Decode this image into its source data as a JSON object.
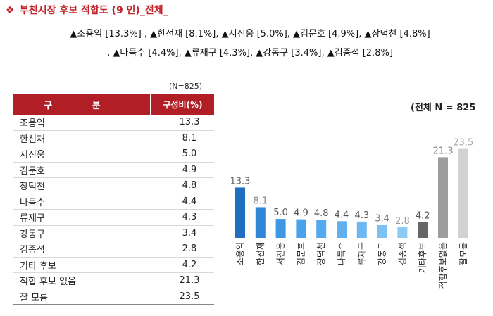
{
  "title": {
    "icon": "diamond-bullet-icon",
    "text": "부천시장 후보 적합도 (9 인)_전체_"
  },
  "summary": {
    "line1": "▲조용익 [13.3%] , ▲한선재 [8.1%], ▲서진웅 [5.0%], ▲김문호 [4.9%], ▲장덕천 [4.8%]",
    "line2": ", ▲나득수 [4.4%], ▲류재구 [4.3%], ▲강동구 [3.4%], ▲김종석 [2.8%]"
  },
  "table": {
    "n_note": "(N=825)",
    "header": {
      "category": "구 분",
      "value": "구성비(%)"
    },
    "rows": [
      {
        "label": "조용익",
        "value": "13.3"
      },
      {
        "label": "한선재",
        "value": "8.1"
      },
      {
        "label": "서진웅",
        "value": "5.0"
      },
      {
        "label": "김문호",
        "value": "4.9"
      },
      {
        "label": "장덕천",
        "value": "4.8"
      },
      {
        "label": "나득수",
        "value": "4.4"
      },
      {
        "label": "류재구",
        "value": "4.3"
      },
      {
        "label": "강동구",
        "value": "3.4"
      },
      {
        "label": "김종석",
        "value": "2.8"
      },
      {
        "label": "기타 후보",
        "value": "4.2"
      },
      {
        "label": "적합 후보 없음",
        "value": "21.3"
      },
      {
        "label": "잘 모름",
        "value": "23.5"
      }
    ]
  },
  "chart_data": {
    "type": "bar",
    "title": "(전체 N = 825",
    "categories": [
      "조용익",
      "한선재",
      "서진웅",
      "김문호",
      "장덕천",
      "나득수",
      "류재구",
      "강동구",
      "김종석",
      "기타후보",
      "적합후보없음",
      "잘모름"
    ],
    "values": [
      13.3,
      8.1,
      5.0,
      4.9,
      4.8,
      4.4,
      4.3,
      3.4,
      2.8,
      4.2,
      21.3,
      23.5
    ],
    "value_labels": [
      "13.3",
      "8.1",
      "5.0",
      "4.9",
      "4.8",
      "4.4",
      "4.3",
      "3.4",
      "2.8",
      "4.2",
      "21.3",
      "23.5"
    ],
    "colors": [
      "#1f6fbf",
      "#2f86d6",
      "#3d97e3",
      "#4aa2ea",
      "#55a9ee",
      "#60b0f0",
      "#6db7f2",
      "#7dc0f4",
      "#8ecaf6",
      "#666666",
      "#9d9d9d",
      "#d2d2d2"
    ],
    "label_colors": [
      "#666666",
      "#888888",
      "#555555",
      "#555555",
      "#555555",
      "#555555",
      "#555555",
      "#777777",
      "#999999",
      "#555555",
      "#888888",
      "#aaaaaa"
    ],
    "ylim": [
      0,
      25
    ],
    "grid": false
  }
}
